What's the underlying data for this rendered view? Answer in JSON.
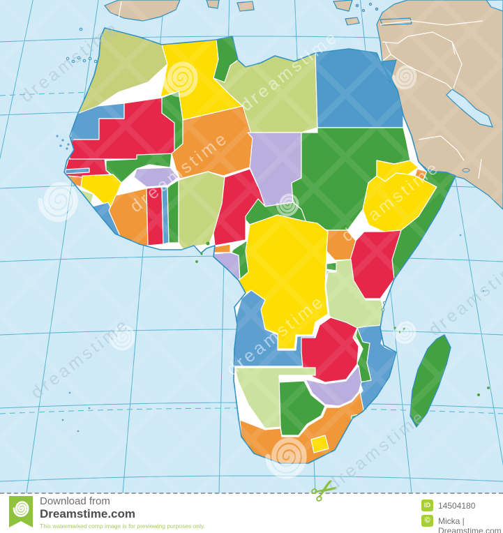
{
  "map": {
    "description": "Political map of Africa, countries in flat colors on light blue ocean with graticule",
    "ocean_color": "#cfe9f6",
    "graticule_color": "#53b4d0",
    "coast_color": "#2e8fc0",
    "border_color": "#ffffff",
    "foreign_land_color": "#d8c4a8",
    "foreign_border_color": "#ffffff",
    "countries": [
      {
        "id": "morocco",
        "name": "Morocco",
        "color": "#c6cf7a"
      },
      {
        "id": "algeria",
        "name": "Algeria",
        "color": "#fedd00"
      },
      {
        "id": "tunisia",
        "name": "Tunisia",
        "color": "#44a13f"
      },
      {
        "id": "libya",
        "name": "Libya",
        "color": "#c6d67f"
      },
      {
        "id": "egypt",
        "name": "Egypt",
        "color": "#4f9aca"
      },
      {
        "id": "western-sahara",
        "name": "Western Sahara",
        "color": "#5d9fcf"
      },
      {
        "id": "mauritania",
        "name": "Mauritania",
        "color": "#e5274a"
      },
      {
        "id": "mali",
        "name": "Mali",
        "color": "#44a13f"
      },
      {
        "id": "niger",
        "name": "Niger",
        "color": "#f0973a"
      },
      {
        "id": "chad",
        "name": "Chad",
        "color": "#b9aede"
      },
      {
        "id": "sudan",
        "name": "Sudan",
        "color": "#44a13f"
      },
      {
        "id": "eritrea",
        "name": "Eritrea",
        "color": "#fedd00"
      },
      {
        "id": "djibouti",
        "name": "Djibouti",
        "color": "#f0973a"
      },
      {
        "id": "ethiopia",
        "name": "Ethiopia",
        "color": "#fedd00"
      },
      {
        "id": "somalia",
        "name": "Somalia",
        "color": "#44a13f"
      },
      {
        "id": "kenya",
        "name": "Kenya",
        "color": "#e5274a"
      },
      {
        "id": "uganda",
        "name": "Uganda",
        "color": "#f0973a"
      },
      {
        "id": "senegal",
        "name": "Senegal",
        "color": "#e5274a"
      },
      {
        "id": "gambia",
        "name": "Gambia",
        "color": "#5d9fcf"
      },
      {
        "id": "guinea-bissau",
        "name": "Guinea-Bissau",
        "color": "#f0973a"
      },
      {
        "id": "guinea",
        "name": "Guinea",
        "color": "#fedd00"
      },
      {
        "id": "sierra-leone",
        "name": "Sierra Leone",
        "color": "#cbe29f"
      },
      {
        "id": "liberia",
        "name": "Liberia",
        "color": "#5d9fcf"
      },
      {
        "id": "burkina-faso",
        "name": "Burkina Faso",
        "color": "#b9aede"
      },
      {
        "id": "cote-divoire",
        "name": "Cote d'Ivoire",
        "color": "#f0973a"
      },
      {
        "id": "ghana",
        "name": "Ghana",
        "color": "#e5274a"
      },
      {
        "id": "togo",
        "name": "Togo",
        "color": "#5d9fcf"
      },
      {
        "id": "benin",
        "name": "Benin",
        "color": "#44a13f"
      },
      {
        "id": "nigeria",
        "name": "Nigeria",
        "color": "#c6d67f"
      },
      {
        "id": "cameroon",
        "name": "Cameroon",
        "color": "#e5274a"
      },
      {
        "id": "central-african-republic",
        "name": "Central African Republic",
        "color": "#44a13f"
      },
      {
        "id": "equatorial-guinea",
        "name": "Equatorial Guinea",
        "color": "#f0973a"
      },
      {
        "id": "gabon",
        "name": "Gabon",
        "color": "#b9aede"
      },
      {
        "id": "congo",
        "name": "Congo",
        "color": "#44a13f"
      },
      {
        "id": "drc",
        "name": "Democratic Republic of the Congo",
        "color": "#fedd00"
      },
      {
        "id": "rwanda",
        "name": "Rwanda",
        "color": "#44a13f"
      },
      {
        "id": "burundi",
        "name": "Burundi",
        "color": "#5d9fcf"
      },
      {
        "id": "tanzania",
        "name": "Tanzania",
        "color": "#cbe29f"
      },
      {
        "id": "angola",
        "name": "Angola",
        "color": "#5d9fcf"
      },
      {
        "id": "zambia",
        "name": "Zambia",
        "color": "#e5274a"
      },
      {
        "id": "malawi",
        "name": "Malawi",
        "color": "#44a13f"
      },
      {
        "id": "mozambique",
        "name": "Mozambique",
        "color": "#5d9fcf"
      },
      {
        "id": "zimbabwe",
        "name": "Zimbabwe",
        "color": "#b9aede"
      },
      {
        "id": "botswana",
        "name": "Botswana",
        "color": "#44a13f"
      },
      {
        "id": "namibia",
        "name": "Namibia",
        "color": "#cbe29f"
      },
      {
        "id": "south-africa",
        "name": "South Africa",
        "color": "#f0973a"
      },
      {
        "id": "lesotho",
        "name": "Lesotho",
        "color": "#fedd00"
      },
      {
        "id": "swaziland",
        "name": "Swaziland",
        "color": "#44a13f"
      },
      {
        "id": "madagascar",
        "name": "Madagascar",
        "color": "#44a13f"
      }
    ]
  },
  "watermark": {
    "text": "dreamstime",
    "text_color_on_land": "#ffffff",
    "text_color_on_ocean": "#a9c4d2",
    "spiral_color": "#ffffff"
  },
  "footer": {
    "download_from": "Download from",
    "site": "Dreamstime.com",
    "disclaimer": "This watermarked comp image is for previewing purposes only.",
    "id_label": "ID",
    "id_value": "14504180",
    "copyright_symbol": "©",
    "credit": "Micka | Dreamstime.com",
    "accent_color": "#8fc23f",
    "icons": {
      "scissors": "✂"
    }
  }
}
